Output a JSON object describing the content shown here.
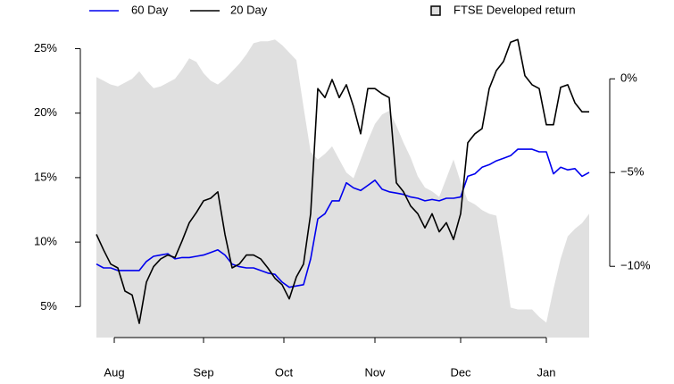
{
  "chart_data": {
    "type": "line",
    "x": [
      0,
      2,
      4,
      6,
      8,
      10,
      12,
      14,
      16,
      18,
      20,
      22,
      24,
      26,
      28,
      30,
      32,
      34,
      36,
      38,
      40,
      42,
      44,
      46,
      48,
      50,
      52,
      54,
      56,
      58,
      60,
      62,
      64,
      66,
      68,
      70,
      72,
      74,
      76,
      78,
      80,
      82,
      84,
      86,
      88,
      90,
      92,
      94,
      96,
      98,
      100,
      102,
      104,
      106,
      108,
      110,
      112,
      114,
      116,
      118,
      120,
      122,
      124,
      126,
      128,
      130,
      132,
      134,
      136,
      138
    ],
    "xlim": [
      0,
      138
    ],
    "xticks": [
      {
        "value": 5,
        "label": "Aug"
      },
      {
        "value": 30,
        "label": "Sep"
      },
      {
        "value": 52.5,
        "label": "Oct"
      },
      {
        "value": 78,
        "label": "Nov"
      },
      {
        "value": 102,
        "label": "Dec"
      },
      {
        "value": 126,
        "label": "Jan"
      }
    ],
    "ylim": [
      2.6,
      26
    ],
    "yticks": [
      {
        "value": 5,
        "label": "5%"
      },
      {
        "value": 10,
        "label": "10%"
      },
      {
        "value": 15,
        "label": "15%"
      },
      {
        "value": 20,
        "label": "20%"
      },
      {
        "value": 25,
        "label": "25%"
      }
    ],
    "y2lim": [
      -13.8,
      2.3
    ],
    "y2ticks": [
      {
        "value": -10,
        "label": "−10%"
      },
      {
        "value": -5,
        "label": "−5%"
      },
      {
        "value": 0,
        "label": "0%"
      }
    ],
    "series": [
      {
        "name": "60 Day",
        "color": "#0000ee",
        "type": "line",
        "values": [
          8.3,
          8.0,
          8.0,
          7.8,
          7.8,
          7.8,
          7.8,
          8.5,
          8.9,
          9.0,
          9.1,
          8.7,
          8.8,
          8.8,
          8.9,
          9.0,
          9.2,
          9.4,
          9.0,
          8.3,
          8.1,
          8.0,
          8.0,
          7.8,
          7.6,
          7.5,
          6.9,
          6.5,
          6.6,
          6.7,
          8.7,
          11.8,
          12.2,
          13.2,
          13.2,
          14.6,
          14.2,
          14.0,
          14.4,
          14.8,
          14.1,
          13.9,
          13.8,
          13.7,
          13.5,
          13.4,
          13.2,
          13.3,
          13.2,
          13.4,
          13.4,
          13.5,
          15.1,
          15.3,
          15.8,
          16.0,
          16.3,
          16.5,
          16.7,
          17.2,
          17.2,
          17.2,
          17.0,
          17.0,
          15.3,
          15.8,
          15.6,
          15.7,
          15.1,
          15.4
        ]
      },
      {
        "name": "20 Day",
        "color": "#000000",
        "type": "line",
        "values": [
          10.6,
          9.4,
          8.3,
          8.0,
          6.2,
          5.9,
          3.7,
          6.9,
          8.1,
          8.7,
          9.0,
          8.8,
          10.1,
          11.5,
          12.3,
          13.2,
          13.4,
          13.9,
          10.6,
          8.0,
          8.3,
          9.0,
          9.0,
          8.7,
          8.0,
          7.2,
          6.7,
          5.6,
          7.3,
          8.3,
          12.2,
          21.9,
          21.2,
          22.6,
          21.2,
          22.2,
          20.5,
          18.4,
          21.9,
          21.9,
          21.5,
          21.2,
          14.6,
          13.9,
          12.8,
          12.2,
          11.1,
          12.2,
          10.8,
          11.5,
          10.2,
          12.2,
          17.7,
          18.4,
          18.8,
          21.9,
          23.3,
          24.0,
          25.5,
          25.7,
          22.9,
          22.2,
          21.9,
          19.1,
          19.1,
          22.0,
          22.2,
          20.8,
          20.1,
          20.1
        ]
      },
      {
        "name": "FTSE Developed return",
        "color": "#e0e0e0",
        "type": "area",
        "axis": "y2",
        "values": [
          0.1,
          -0.1,
          -0.3,
          -0.4,
          -0.2,
          0.0,
          0.4,
          -0.1,
          -0.5,
          -0.4,
          -0.2,
          0.0,
          0.5,
          1.1,
          0.9,
          0.3,
          -0.1,
          -0.3,
          0.0,
          0.4,
          0.8,
          1.3,
          1.9,
          2.0,
          2.0,
          2.1,
          1.8,
          1.4,
          1.0,
          -1.5,
          -3.9,
          -4.3,
          -4.0,
          -3.6,
          -4.3,
          -5.0,
          -5.3,
          -4.3,
          -3.3,
          -2.4,
          -1.9,
          -1.7,
          -2.5,
          -3.4,
          -4.2,
          -5.2,
          -5.8,
          -6.0,
          -6.3,
          -5.3,
          -4.3,
          -5.5,
          -6.5,
          -6.7,
          -7.0,
          -7.2,
          -7.3,
          -9.6,
          -12.2,
          -12.3,
          -12.3,
          -12.3,
          -12.7,
          -13.0,
          -11.2,
          -9.6,
          -8.4,
          -8.0,
          -7.7,
          -7.2
        ]
      }
    ]
  }
}
